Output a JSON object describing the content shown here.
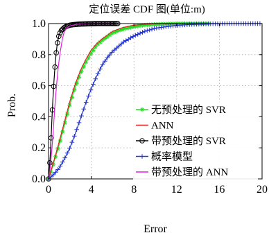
{
  "chart_data": {
    "type": "line",
    "title": "定位误差 CDF 图(单位:m)",
    "xlabel": "Error",
    "ylabel": "Prob.",
    "xlim": [
      0,
      20
    ],
    "ylim": [
      0,
      1.0
    ],
    "xticks": [
      0,
      4,
      8,
      12,
      16,
      20
    ],
    "yticks": [
      0.0,
      0.2,
      0.4,
      0.6,
      0.8,
      1.0
    ],
    "xtick_labels": [
      "0",
      "4",
      "8",
      "12",
      "16",
      "20"
    ],
    "ytick_labels": [
      "0.0",
      "0.2",
      "0.4",
      "0.6",
      "0.8",
      "1.0"
    ],
    "grid": true,
    "legend_position": "bottom-right",
    "series": [
      {
        "name": "无预处理的 SVR",
        "color": "#22dd22",
        "marker": "asterisk",
        "x": [
          0,
          0.3,
          0.6,
          1.0,
          1.5,
          2.0,
          2.5,
          3.0,
          3.5,
          4.0,
          4.5,
          5.0,
          6.0,
          7.0,
          8.0,
          9.0,
          10.0,
          11.0,
          12.0,
          13.0,
          14.0,
          15.0
        ],
        "y": [
          0,
          0.06,
          0.13,
          0.22,
          0.35,
          0.48,
          0.59,
          0.68,
          0.75,
          0.81,
          0.86,
          0.89,
          0.94,
          0.965,
          0.98,
          0.99,
          0.995,
          0.998,
          1.0,
          1.0,
          1.0,
          1.0
        ]
      },
      {
        "name": "ANN",
        "color": "#e02020",
        "marker": "none",
        "x": [
          0,
          0.3,
          0.6,
          1.0,
          1.5,
          2.0,
          2.5,
          3.0,
          3.5,
          4.0,
          4.5,
          5.0,
          6.0,
          7.0,
          8.0,
          9.0,
          10.0,
          11.0,
          12.0
        ],
        "y": [
          0,
          0.07,
          0.14,
          0.24,
          0.37,
          0.5,
          0.61,
          0.7,
          0.77,
          0.83,
          0.87,
          0.9,
          0.95,
          0.975,
          0.99,
          0.995,
          1.0,
          1.0,
          1.0
        ]
      },
      {
        "name": "带预处理的 SVR",
        "color": "#000000",
        "marker": "circle",
        "x": [
          0,
          0.1,
          0.2,
          0.3,
          0.4,
          0.5,
          0.6,
          0.7,
          0.8,
          0.9,
          1.0,
          1.2,
          1.4,
          1.6,
          1.8,
          2.0,
          2.3,
          2.6,
          3.0,
          3.5,
          4.0,
          4.5,
          5.0,
          5.5,
          6.0,
          6.5
        ],
        "y": [
          0,
          0.08,
          0.2,
          0.36,
          0.5,
          0.62,
          0.72,
          0.8,
          0.86,
          0.9,
          0.93,
          0.955,
          0.97,
          0.98,
          0.985,
          0.99,
          0.993,
          0.995,
          0.997,
          0.998,
          0.999,
          1.0,
          1.0,
          1.0,
          1.0,
          1.0
        ]
      },
      {
        "name": "概率模型",
        "color": "#2233cc",
        "marker": "plus",
        "x": [
          0,
          0.5,
          1.0,
          1.5,
          2.0,
          2.5,
          3.0,
          3.5,
          4.0,
          4.5,
          5.0,
          5.5,
          6.0,
          7.0,
          8.0,
          9.0,
          10.0,
          11.0,
          12.0,
          13.0,
          14.0,
          15.0,
          16.0,
          17.0,
          18.0,
          19.0,
          20.0
        ],
        "y": [
          0,
          0.03,
          0.07,
          0.13,
          0.2,
          0.29,
          0.39,
          0.49,
          0.58,
          0.66,
          0.73,
          0.78,
          0.82,
          0.88,
          0.92,
          0.95,
          0.97,
          0.98,
          0.988,
          0.993,
          0.996,
          0.998,
          0.999,
          1.0,
          1.0,
          1.0,
          1.0
        ]
      },
      {
        "name": "带预处理的 ANN",
        "color": "#dd22dd",
        "marker": "none",
        "x": [
          0,
          0.1,
          0.2,
          0.3,
          0.4,
          0.5,
          0.6,
          0.7,
          0.8,
          0.9,
          1.0,
          1.1,
          1.2,
          1.3,
          1.4,
          1.5,
          1.7,
          2.0,
          2.3,
          2.6,
          3.0,
          3.5,
          4.0,
          5.0,
          6.0
        ],
        "y": [
          0,
          0.04,
          0.1,
          0.18,
          0.27,
          0.37,
          0.47,
          0.56,
          0.64,
          0.71,
          0.77,
          0.82,
          0.86,
          0.9,
          0.93,
          0.95,
          0.97,
          0.985,
          0.99,
          0.995,
          0.997,
          0.999,
          1.0,
          1.0,
          1.0
        ]
      }
    ]
  }
}
